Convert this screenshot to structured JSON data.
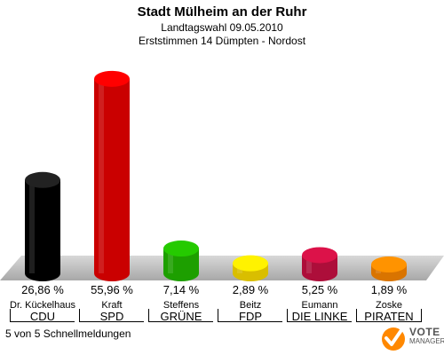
{
  "header": {
    "title": "Stadt Mülheim an der Ruhr",
    "subtitle": "Landtagswahl 09.05.2010",
    "subtitle2": "Erststimmen 14 Dümpten - Nordost"
  },
  "footer": {
    "text": "5 von 5 Schnellmeldungen"
  },
  "logo": {
    "word": "VOTE",
    "sub": "MANAGER"
  },
  "chart_data": {
    "type": "bar",
    "title": "Stadt Mülheim an der Ruhr",
    "categories": [
      "CDU",
      "SPD",
      "GRÜNE",
      "FDP",
      "DIE LINKE",
      "PIRATEN"
    ],
    "candidates": [
      "Dr. Kückelhaus",
      "Kraft",
      "Steffens",
      "Beitz",
      "Eumann",
      "Zoske"
    ],
    "values": [
      26.86,
      55.96,
      7.14,
      2.89,
      5.25,
      1.89
    ],
    "value_labels": [
      "26,86 %",
      "55,96 %",
      "7,14 %",
      "2,89 %",
      "5,25 %",
      "1,89 %"
    ],
    "colors": [
      "#000000",
      "#ee0000",
      "#22bb00",
      "#ffe000",
      "#cc1144",
      "#ff8800"
    ],
    "ylim": [
      0,
      60
    ],
    "grid": false
  }
}
